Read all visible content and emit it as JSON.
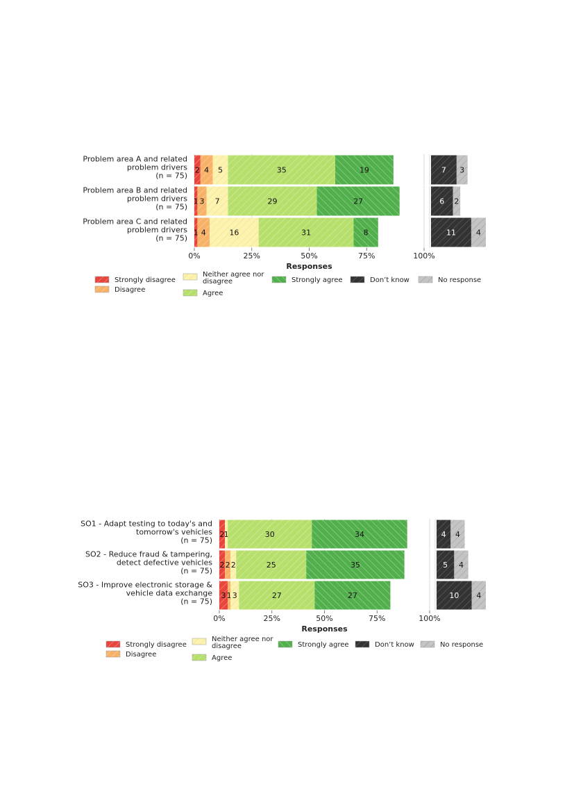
{
  "chart_data": [
    {
      "type": "bar",
      "stacked": true,
      "orientation": "horizontal",
      "categories": [
        [
          "Problem area A and related",
          "problem drivers",
          "(n = 75)"
        ],
        [
          "Problem area B and related",
          "problem drivers",
          "(n = 75)"
        ],
        [
          "Problem area C and related",
          "problem drivers",
          "(n = 75)"
        ]
      ],
      "series": [
        {
          "name": "Strongly disagree",
          "color": "#e8453c",
          "values": [
            2,
            1,
            1
          ]
        },
        {
          "name": "Disagree",
          "color": "#f7b267",
          "values": [
            4,
            3,
            4
          ]
        },
        {
          "name": "Neither agree nor disagree",
          "color": "#fdf3b0",
          "values": [
            5,
            7,
            16
          ]
        },
        {
          "name": "Agree",
          "color": "#b7df6c",
          "values": [
            35,
            29,
            31
          ]
        },
        {
          "name": "Strongly agree",
          "color": "#52b04c",
          "values": [
            19,
            27,
            8
          ]
        }
      ],
      "side_series": [
        {
          "name": "Don't know",
          "color": "#333333",
          "values": [
            7,
            6,
            11
          ]
        },
        {
          "name": "No response",
          "color": "#c4c4c4",
          "values": [
            3,
            2,
            4
          ]
        }
      ],
      "legend_labels": {
        "strongly_disagree": "Strongly disagree",
        "disagree": "Disagree",
        "neither": [
          "Neither agree nor",
          "disagree"
        ],
        "agree": "Agree",
        "strongly_agree": "Strongly agree",
        "dont_know": "Don’t know",
        "no_response": "No response"
      },
      "xlabel": "Responses",
      "xticks": [
        "0%",
        "25%",
        "50%",
        "75%",
        "100%"
      ],
      "xlim": [
        0,
        100
      ],
      "legend_position": "bottom"
    },
    {
      "type": "bar",
      "stacked": true,
      "orientation": "horizontal",
      "categories": [
        [
          "SO1 - Adapt testing to today's and",
          "tomorrow's vehicles",
          "(n = 75)"
        ],
        [
          "SO2 - Reduce fraud & tampering,",
          "detect defective vehicles",
          "(n = 75)"
        ],
        [
          "SO3 - Improve electronic storage &",
          "vehicle data exchange",
          "(n = 75)"
        ]
      ],
      "series": [
        {
          "name": "Strongly disagree",
          "color": "#e8453c",
          "values": [
            2,
            2,
            3
          ]
        },
        {
          "name": "Disagree",
          "color": "#f7b267",
          "values": [
            0,
            2,
            1
          ]
        },
        {
          "name": "Neither agree nor disagree",
          "color": "#fdf3b0",
          "values": [
            1,
            2,
            3
          ]
        },
        {
          "name": "Agree",
          "color": "#b7df6c",
          "values": [
            30,
            25,
            27
          ]
        },
        {
          "name": "Strongly agree",
          "color": "#52b04c",
          "values": [
            34,
            35,
            27
          ]
        }
      ],
      "side_series": [
        {
          "name": "Don't know",
          "color": "#333333",
          "values": [
            4,
            5,
            10
          ]
        },
        {
          "name": "No response",
          "color": "#c4c4c4",
          "values": [
            4,
            4,
            4
          ]
        }
      ],
      "legend_labels": {
        "strongly_disagree": "Strongly disagree",
        "disagree": "Disagree",
        "neither": [
          "Neither agree nor",
          "disagree"
        ],
        "agree": "Agree",
        "strongly_agree": "Strongly agree",
        "dont_know": "Don’t know",
        "no_response": "No response"
      },
      "xlabel": "Responses",
      "xticks": [
        "0%",
        "25%",
        "50%",
        "75%",
        "100%"
      ],
      "xlim": [
        0,
        100
      ],
      "legend_position": "bottom"
    }
  ]
}
